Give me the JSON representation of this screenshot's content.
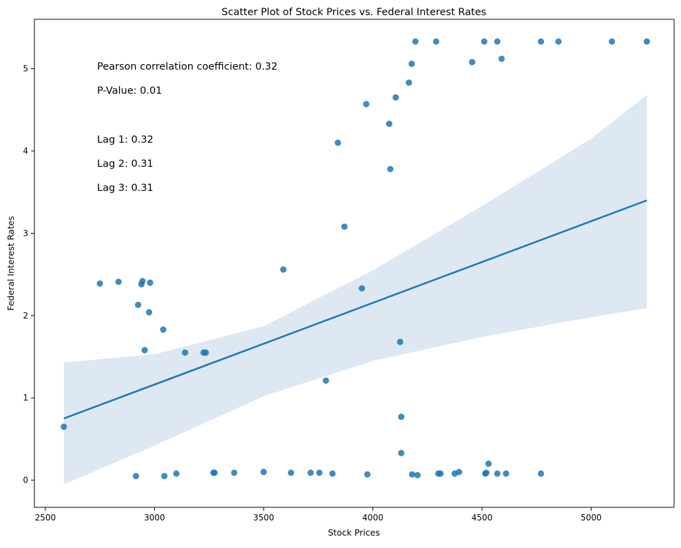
{
  "chart_data": {
    "type": "scatter",
    "title": "Scatter Plot of Stock Prices vs. Federal Interest Rates",
    "xlabel": "Stock Prices",
    "ylabel": "Federal Interest Rates",
    "xlim": [
      2450,
      5380
    ],
    "ylim": [
      -0.33,
      5.6
    ],
    "xticks": [
      2500,
      3000,
      3500,
      4000,
      4500,
      5000
    ],
    "yticks": [
      0,
      1,
      2,
      3,
      4,
      5
    ],
    "grid": false,
    "point_color": "#1f77b4",
    "annotations": [
      "Pearson correlation coefficient: 0.32",
      "P-Value: 0.01",
      "Lag 1: 0.32",
      "Lag 2: 0.31",
      "Lag 3: 0.31"
    ],
    "regression": {
      "x": [
        2585,
        5255
      ],
      "y": [
        0.75,
        3.4
      ],
      "ci_lower": [
        [
          2585,
          -0.05
        ],
        [
          3000,
          0.42
        ],
        [
          3500,
          1.02
        ],
        [
          4000,
          1.45
        ],
        [
          4500,
          1.74
        ],
        [
          5000,
          1.98
        ],
        [
          5255,
          2.09
        ]
      ],
      "ci_upper": [
        [
          2585,
          1.43
        ],
        [
          3000,
          1.53
        ],
        [
          3500,
          1.87
        ],
        [
          4000,
          2.55
        ],
        [
          4500,
          3.33
        ],
        [
          5000,
          4.15
        ],
        [
          5255,
          4.68
        ]
      ]
    },
    "points": [
      [
        2585,
        0.65
      ],
      [
        2750,
        2.39
      ],
      [
        2835,
        2.41
      ],
      [
        2915,
        0.05
      ],
      [
        2925,
        2.13
      ],
      [
        2940,
        2.38
      ],
      [
        2945,
        2.42
      ],
      [
        2955,
        1.58
      ],
      [
        2975,
        2.04
      ],
      [
        2980,
        2.4
      ],
      [
        3040,
        1.83
      ],
      [
        3045,
        0.05
      ],
      [
        3100,
        0.08
      ],
      [
        3140,
        1.55
      ],
      [
        3225,
        1.55
      ],
      [
        3235,
        1.55
      ],
      [
        3270,
        0.09
      ],
      [
        3275,
        0.09
      ],
      [
        3365,
        0.09
      ],
      [
        3500,
        0.1
      ],
      [
        3590,
        2.56
      ],
      [
        3625,
        0.09
      ],
      [
        3715,
        0.09
      ],
      [
        3755,
        0.09
      ],
      [
        3785,
        1.21
      ],
      [
        3815,
        0.08
      ],
      [
        3840,
        4.1
      ],
      [
        3870,
        3.08
      ],
      [
        3950,
        2.33
      ],
      [
        3970,
        4.57
      ],
      [
        3975,
        0.07
      ],
      [
        4075,
        4.33
      ],
      [
        4080,
        3.78
      ],
      [
        4105,
        4.65
      ],
      [
        4125,
        1.68
      ],
      [
        4130,
        0.77
      ],
      [
        4130,
        0.33
      ],
      [
        4165,
        4.83
      ],
      [
        4178,
        5.06
      ],
      [
        4180,
        0.07
      ],
      [
        4195,
        5.33
      ],
      [
        4205,
        0.06
      ],
      [
        4290,
        5.33
      ],
      [
        4300,
        0.08
      ],
      [
        4310,
        0.08
      ],
      [
        4375,
        0.08
      ],
      [
        4395,
        0.1
      ],
      [
        4455,
        5.08
      ],
      [
        4510,
        5.33
      ],
      [
        4515,
        0.08
      ],
      [
        4520,
        0.09
      ],
      [
        4530,
        0.2
      ],
      [
        4570,
        5.33
      ],
      [
        4570,
        0.08
      ],
      [
        4590,
        5.12
      ],
      [
        4610,
        0.08
      ],
      [
        4770,
        5.33
      ],
      [
        4770,
        0.08
      ],
      [
        4850,
        5.33
      ],
      [
        5095,
        5.33
      ],
      [
        5255,
        5.33
      ]
    ]
  }
}
